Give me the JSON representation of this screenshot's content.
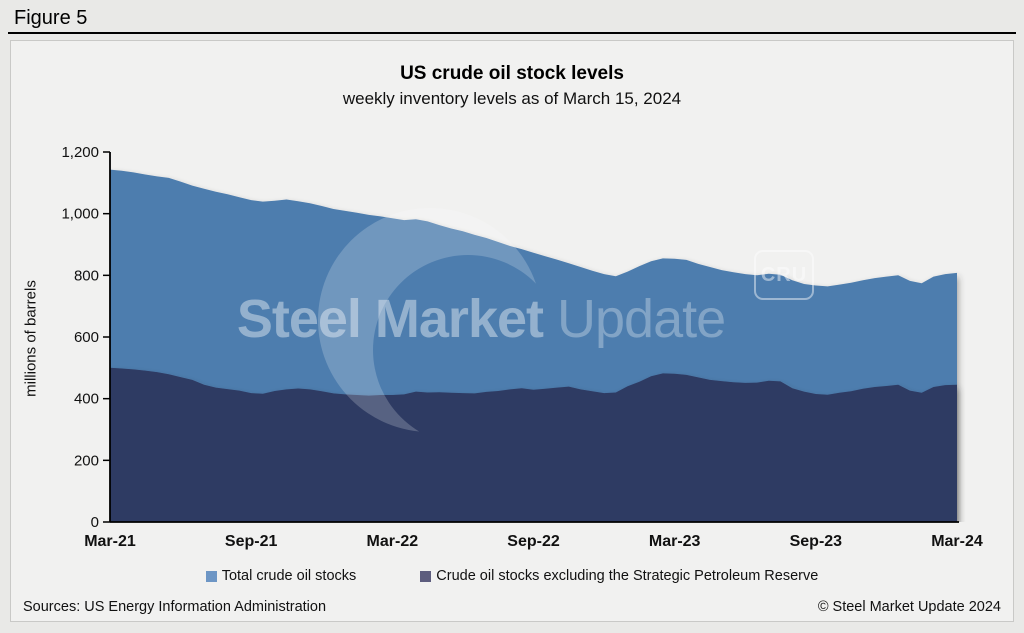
{
  "page": {
    "figure_label": "Figure 5"
  },
  "chart": {
    "title": "US crude oil stock levels",
    "subtitle": "weekly inventory levels as of March 15, 2024",
    "y_axis_label": "millions of barrels"
  },
  "legend": [
    {
      "label": "Total crude oil stocks",
      "color": "#6d96c5"
    },
    {
      "label": "Crude oil stocks excluding the Strategic Petroleum Reserve",
      "color": "#5d5d7e"
    }
  ],
  "watermark": {
    "brand_bold": "Steel Market",
    "brand_light": "Update",
    "badge": "CRU"
  },
  "footer": {
    "sources": "Sources: US Energy Information Administration",
    "copyright": "© Steel Market Update 2024"
  },
  "chart_data": {
    "type": "area",
    "title": "US crude oil stock levels",
    "subtitle": "weekly inventory levels as of March 15, 2024",
    "xlabel": "",
    "ylabel": "millions of barrels",
    "ylim": [
      0,
      1200
    ],
    "grid": false,
    "legend_position": "bottom",
    "x_range": "Mar-2021 to Mar-2024, weekly (plotted at ~biweekly resolution)",
    "x_tick_labels": [
      "Mar-21",
      "Sep-21",
      "Mar-22",
      "Sep-22",
      "Mar-23",
      "Sep-23",
      "Mar-24"
    ],
    "x_tick_indices": [
      0,
      12,
      24,
      36,
      48,
      60,
      72
    ],
    "yticks": [
      {
        "value": 0,
        "label": "0"
      },
      {
        "value": 200,
        "label": "200"
      },
      {
        "value": 400,
        "label": "400"
      },
      {
        "value": 600,
        "label": "600"
      },
      {
        "value": 800,
        "label": "800"
      },
      {
        "value": 1000,
        "label": "1,000"
      },
      {
        "value": 1200,
        "label": "1,200"
      }
    ],
    "series": [
      {
        "name": "Total crude oil stocks",
        "color": "#4d7dae",
        "values": [
          1143,
          1139,
          1134,
          1127,
          1121,
          1116,
          1104,
          1091,
          1081,
          1071,
          1063,
          1053,
          1044,
          1039,
          1042,
          1046,
          1040,
          1034,
          1025,
          1015,
          1009,
          1003,
          996,
          991,
          985,
          979,
          982,
          975,
          963,
          952,
          943,
          931,
          921,
          908,
          895,
          885,
          873,
          862,
          851,
          839,
          827,
          815,
          804,
          797,
          812,
          830,
          846,
          855,
          854,
          850,
          837,
          827,
          817,
          810,
          804,
          800,
          805,
          802,
          784,
          772,
          767,
          764,
          770,
          776,
          784,
          791,
          796,
          800,
          782,
          774,
          796,
          804,
          808
        ]
      },
      {
        "name": "Crude oil stocks excluding the Strategic Petroleum Reserve",
        "color": "#2e3a64",
        "values": [
          500,
          498,
          495,
          491,
          486,
          479,
          470,
          461,
          445,
          436,
          431,
          426,
          418,
          416,
          425,
          430,
          433,
          430,
          424,
          417,
          414,
          412,
          410,
          412,
          412,
          414,
          423,
          420,
          421,
          419,
          418,
          417,
          422,
          425,
          430,
          434,
          429,
          432,
          436,
          439,
          430,
          424,
          418,
          420,
          440,
          455,
          473,
          482,
          481,
          477,
          469,
          461,
          457,
          453,
          451,
          452,
          458,
          456,
          434,
          423,
          415,
          413,
          419,
          424,
          432,
          438,
          441,
          445,
          426,
          419,
          438,
          444,
          445
        ]
      }
    ]
  }
}
